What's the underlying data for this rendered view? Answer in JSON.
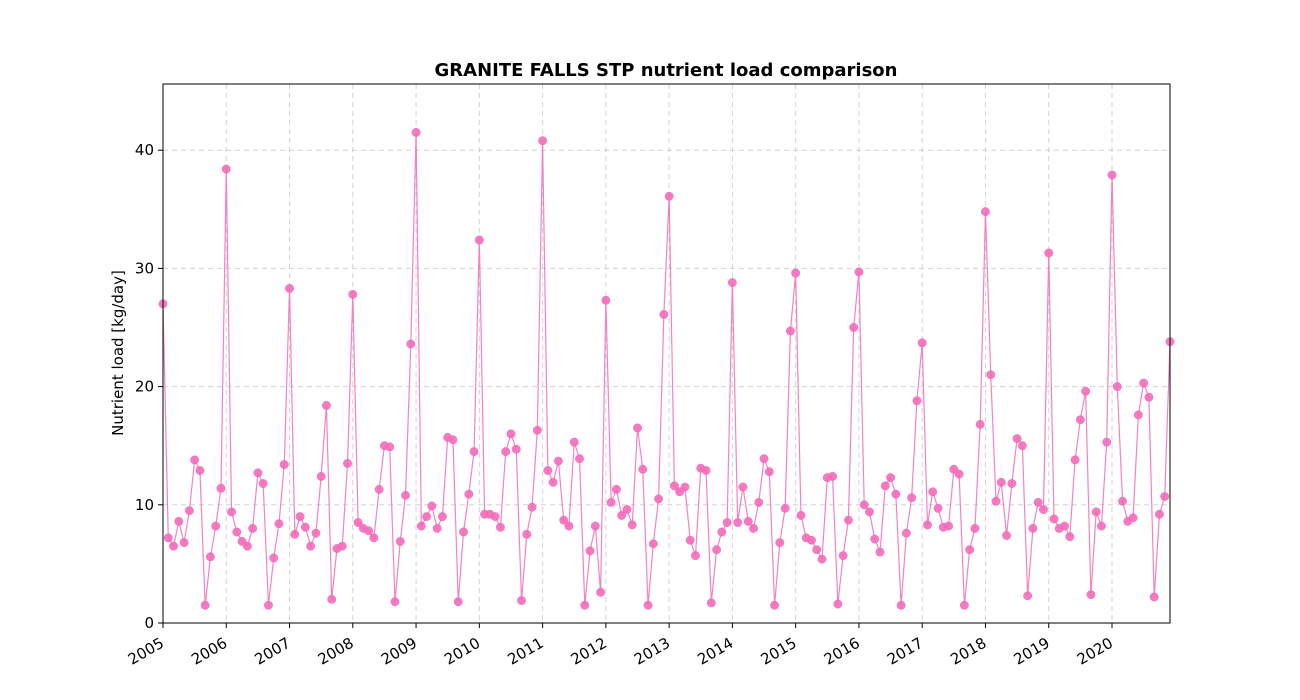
{
  "chart_data": {
    "type": "line",
    "title": "GRANITE FALLS STP nutrient load comparison",
    "xlabel": "",
    "ylabel": "Nutrient load [kg/day]",
    "ylim": [
      0,
      45.6
    ],
    "xlim": [
      "2005-01",
      "2020-12"
    ],
    "yticks": [
      0,
      10,
      20,
      30,
      40
    ],
    "xticks": [
      "2005",
      "2006",
      "2007",
      "2008",
      "2009",
      "2010",
      "2011",
      "2012",
      "2013",
      "2014",
      "2015",
      "2016",
      "2017",
      "2018",
      "2019",
      "2020"
    ],
    "grid": true,
    "series": [
      {
        "color": "#f36cba",
        "marker": "circle",
        "start": "2005-01",
        "frequency": "monthly",
        "values": [
          27.0,
          7.2,
          6.5,
          8.6,
          6.8,
          9.5,
          13.8,
          12.9,
          1.5,
          5.6,
          8.2,
          11.4,
          38.4,
          9.4,
          7.7,
          6.9,
          6.5,
          8.0,
          12.7,
          11.8,
          1.5,
          5.5,
          8.4,
          13.4,
          28.3,
          7.5,
          9.0,
          8.1,
          6.5,
          7.6,
          12.4,
          18.4,
          2.0,
          6.3,
          6.5,
          13.5,
          27.8,
          8.5,
          8.0,
          7.8,
          7.2,
          11.3,
          15.0,
          14.9,
          1.8,
          6.9,
          10.8,
          23.6,
          41.5,
          8.2,
          9.0,
          9.9,
          8.0,
          9.0,
          15.7,
          15.5,
          1.8,
          7.7,
          10.9,
          14.5,
          32.4,
          9.2,
          9.2,
          9.0,
          8.1,
          14.5,
          16.0,
          14.7,
          1.9,
          7.5,
          9.8,
          16.3,
          40.8,
          12.9,
          11.9,
          13.7,
          8.7,
          8.2,
          15.3,
          13.9,
          1.5,
          6.1,
          8.2,
          2.6,
          27.3,
          10.2,
          11.3,
          9.1,
          9.6,
          8.3,
          16.5,
          13.0,
          1.5,
          6.7,
          10.5,
          26.1,
          36.1,
          11.6,
          11.1,
          11.5,
          7.0,
          5.7,
          13.1,
          12.9,
          1.7,
          6.2,
          7.7,
          8.5,
          28.8,
          8.5,
          11.5,
          8.6,
          8.0,
          10.2,
          13.9,
          12.8,
          1.5,
          6.8,
          9.7,
          24.7,
          29.6,
          9.1,
          7.2,
          7.0,
          6.2,
          5.4,
          12.3,
          12.4,
          1.6,
          5.7,
          8.7,
          25.0,
          29.7,
          10.0,
          9.4,
          7.1,
          6.0,
          11.6,
          12.3,
          10.9,
          1.5,
          7.6,
          10.6,
          18.8,
          23.7,
          8.3,
          11.1,
          9.7,
          8.1,
          8.2,
          13.0,
          12.6,
          1.5,
          6.2,
          8.0,
          16.8,
          34.8,
          21.0,
          10.3,
          11.9,
          7.4,
          11.8,
          15.6,
          15.0,
          2.3,
          8.0,
          10.2,
          9.6,
          31.3,
          8.8,
          8.0,
          8.2,
          7.3,
          13.8,
          17.2,
          19.6,
          2.4,
          9.4,
          8.2,
          15.3,
          37.9,
          20.0,
          10.3,
          8.6,
          8.9,
          17.6,
          20.3,
          19.1,
          2.2,
          9.2,
          10.7,
          23.8
        ]
      }
    ]
  }
}
